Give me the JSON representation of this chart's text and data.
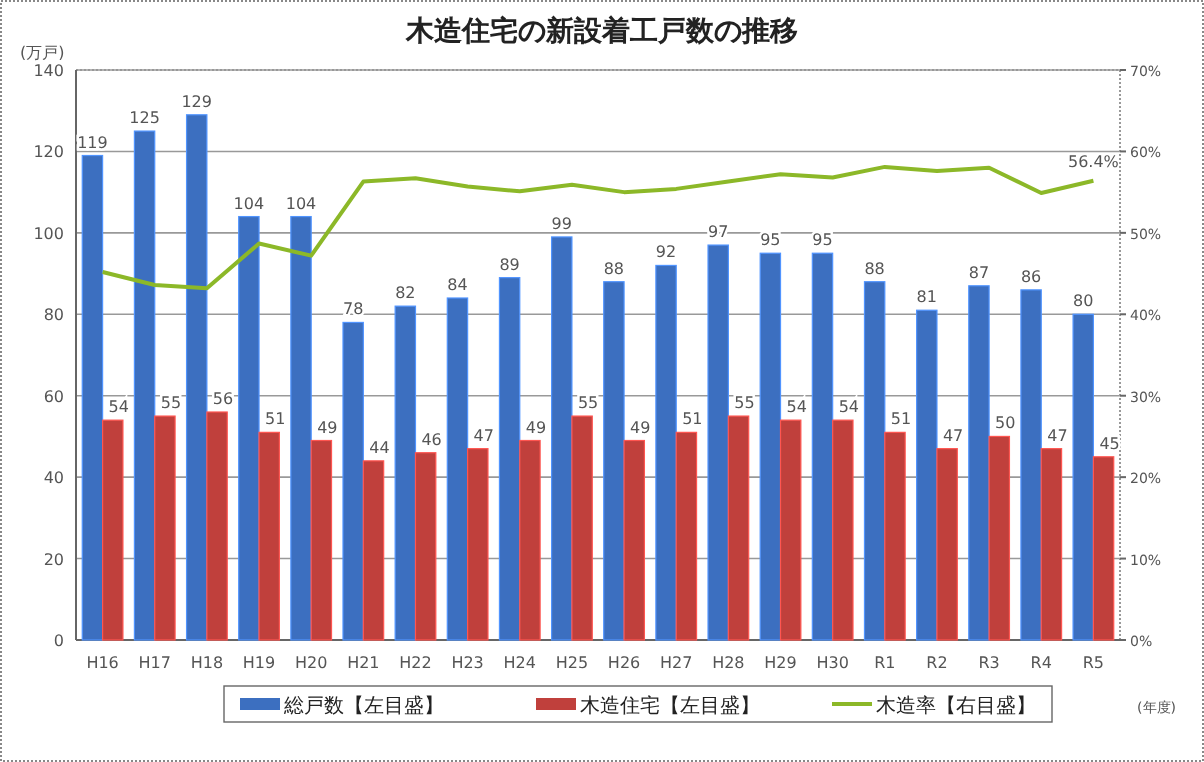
{
  "chart_data": {
    "type": "bar",
    "title": "木造住宅の新設着工戸数の推移",
    "ylabel": "(万戸)",
    "annotations": [
      "(年度)"
    ],
    "categories": [
      "H16",
      "H17",
      "H18",
      "H19",
      "H20",
      "H21",
      "H22",
      "H23",
      "H24",
      "H25",
      "H26",
      "H27",
      "H28",
      "H29",
      "H30",
      "R1",
      "R2",
      "R3",
      "R4",
      "R5"
    ],
    "series": [
      {
        "name": "総戸数【左目盛】",
        "color": "#3c6fc0",
        "values": [
          119,
          125,
          129,
          104,
          104,
          78,
          82,
          84,
          89,
          99,
          88,
          92,
          97,
          95,
          95,
          88,
          81,
          87,
          86,
          80
        ],
        "value_labels": [
          "119",
          "125",
          "129",
          "104",
          "104",
          "78",
          "82",
          "84",
          "89",
          "99",
          "88",
          "92",
          "97",
          "95",
          "95",
          "88",
          "81",
          "87",
          "86",
          "80"
        ]
      },
      {
        "name": "木造住宅【左目盛】",
        "color": "#c0403c",
        "values": [
          54,
          55,
          56,
          51,
          49,
          44,
          46,
          47,
          49,
          55,
          49,
          51,
          55,
          54,
          54,
          51,
          47,
          50,
          47,
          45
        ],
        "value_labels": [
          "54",
          "55",
          "56",
          "51",
          "49",
          "44",
          "46",
          "47",
          "49",
          "55",
          "49",
          "51",
          "55",
          "54",
          "54",
          "51",
          "47",
          "50",
          "47",
          "45"
        ]
      },
      {
        "name": "木造率【右目盛】",
        "type": "line",
        "axis": "y2",
        "color": "#8cb828",
        "values": [
          45.2,
          43.6,
          43.2,
          48.7,
          47.2,
          56.3,
          56.7,
          55.7,
          55.1,
          55.9,
          55.0,
          55.4,
          56.3,
          57.2,
          56.8,
          58.1,
          57.6,
          58.0,
          54.9,
          56.4
        ],
        "value_labels": [
          null,
          null,
          null,
          null,
          null,
          null,
          null,
          null,
          null,
          null,
          null,
          null,
          null,
          null,
          null,
          null,
          null,
          null,
          null,
          "56.4%"
        ]
      }
    ],
    "ylim": [
      0,
      140
    ],
    "yticks": [
      0,
      20,
      40,
      60,
      80,
      100,
      120,
      140
    ],
    "y2lim": [
      0,
      70
    ],
    "y2ticks": [
      {
        "value": 0,
        "label": "0%"
      },
      {
        "value": 10,
        "label": "10%"
      },
      {
        "value": 20,
        "label": "20%"
      },
      {
        "value": 30,
        "label": "30%"
      },
      {
        "value": 40,
        "label": "40%"
      },
      {
        "value": 50,
        "label": "50%"
      },
      {
        "value": 60,
        "label": "60%"
      },
      {
        "value": 70,
        "label": "70%"
      }
    ],
    "grid": "y",
    "legend": "bottom",
    "marker": "none"
  }
}
